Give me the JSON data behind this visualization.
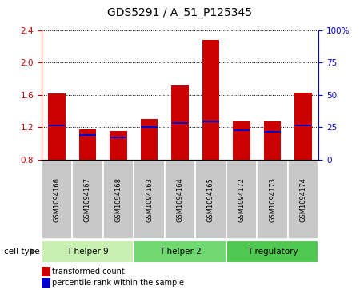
{
  "title": "GDS5291 / A_51_P125345",
  "samples": [
    "GSM1094166",
    "GSM1094167",
    "GSM1094168",
    "GSM1094163",
    "GSM1094164",
    "GSM1094165",
    "GSM1094172",
    "GSM1094173",
    "GSM1094174"
  ],
  "red_values": [
    1.62,
    1.17,
    1.15,
    1.3,
    1.72,
    2.28,
    1.27,
    1.27,
    1.63
  ],
  "blue_positions": [
    1.22,
    1.1,
    1.07,
    1.2,
    1.25,
    1.27,
    1.16,
    1.14,
    1.22
  ],
  "ylim": [
    0.8,
    2.4
  ],
  "yticks_left": [
    0.8,
    1.2,
    1.6,
    2.0,
    2.4
  ],
  "yticks_right": [
    0,
    25,
    50,
    75,
    100
  ],
  "right_tick_labels": [
    "0",
    "25",
    "50",
    "75",
    "100%"
  ],
  "grid_values": [
    1.2,
    1.6,
    2.0,
    2.4
  ],
  "bar_bottom": 0.8,
  "bar_width": 0.55,
  "red_color": "#cc0000",
  "blue_color": "#0000cc",
  "left_axis_color": "#cc0000",
  "right_axis_color": "#0000cc",
  "sample_bg_color": "#c8c8c8",
  "group_labels": [
    "T helper 9",
    "T helper 2",
    "T regulatory"
  ],
  "group_colors": [
    "#c8f0b0",
    "#70d870",
    "#50c850"
  ],
  "group_starts": [
    0,
    3,
    6
  ],
  "group_ends": [
    3,
    6,
    9
  ],
  "cell_type_label": "cell type",
  "legend_red": "transformed count",
  "legend_blue": "percentile rank within the sample"
}
